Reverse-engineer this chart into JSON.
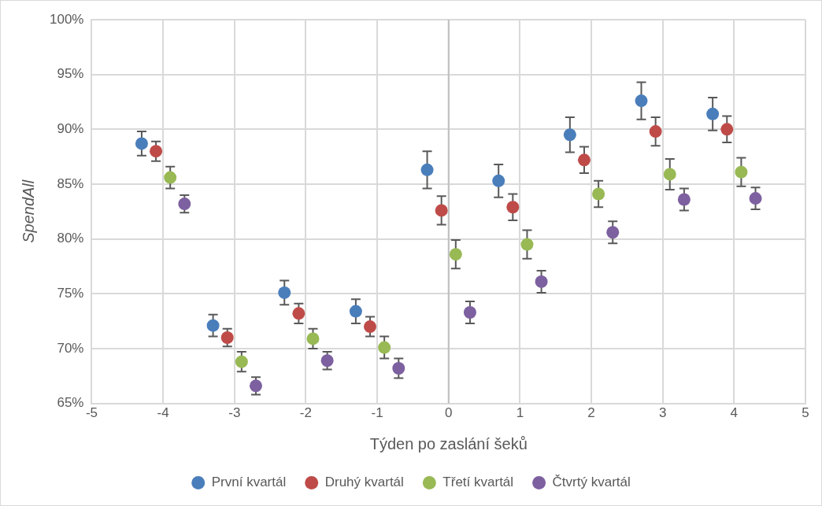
{
  "chart_data": {
    "type": "scatter",
    "xlabel": "Týden po zaslání šeků",
    "ylabel": "SpendAll",
    "xlim": [
      -5,
      5
    ],
    "xticks": [
      -5,
      -4,
      -3,
      -2,
      -1,
      0,
      1,
      2,
      3,
      4,
      5
    ],
    "ylim": [
      65,
      100
    ],
    "yticks": [
      {
        "value": 65,
        "label": "65%"
      },
      {
        "value": 70,
        "label": "70%"
      },
      {
        "value": 75,
        "label": "75%"
      },
      {
        "value": 80,
        "label": "80%"
      },
      {
        "value": 85,
        "label": "85%"
      },
      {
        "value": 90,
        "label": "90%"
      },
      {
        "value": 95,
        "label": "95%"
      },
      {
        "value": 100,
        "label": "100%"
      }
    ],
    "grid": true,
    "legend": "bottom",
    "marker": "circle",
    "ref_lines": [
      {
        "axis": "x",
        "value": 0,
        "color": "#bfbfbf"
      }
    ],
    "series": [
      {
        "name": "První kvartál",
        "color": "#4a7ebb",
        "x": [
          -4.3,
          -3.3,
          -2.3,
          -1.3,
          -0.3,
          0.7,
          1.7,
          2.7,
          3.7
        ],
        "values": [
          88.7,
          72.1,
          75.1,
          73.4,
          86.3,
          85.3,
          89.5,
          92.6,
          91.4
        ],
        "errors": [
          1.1,
          1.0,
          1.1,
          1.1,
          1.7,
          1.5,
          1.6,
          1.7,
          1.5
        ]
      },
      {
        "name": "Druhý kvartál",
        "color": "#be4b48",
        "x": [
          -4.1,
          -3.1,
          -2.1,
          -1.1,
          -0.1,
          0.9,
          1.9,
          2.9,
          3.9
        ],
        "values": [
          88.0,
          71.0,
          73.2,
          72.0,
          82.6,
          82.9,
          87.2,
          89.8,
          90.0
        ],
        "errors": [
          0.9,
          0.8,
          0.9,
          0.9,
          1.3,
          1.2,
          1.2,
          1.3,
          1.2
        ]
      },
      {
        "name": "Třetí kvartál",
        "color": "#98b954",
        "x": [
          -3.9,
          -2.9,
          -1.9,
          -0.9,
          0.1,
          1.1,
          2.1,
          3.1,
          4.1
        ],
        "values": [
          85.6,
          68.8,
          70.9,
          70.1,
          78.6,
          79.5,
          84.1,
          85.9,
          86.1
        ],
        "errors": [
          1.0,
          0.9,
          0.9,
          1.0,
          1.3,
          1.3,
          1.2,
          1.4,
          1.3
        ]
      },
      {
        "name": "Čtvrtý kvartál",
        "color": "#7d60a0",
        "x": [
          -3.7,
          -2.7,
          -1.7,
          -0.7,
          0.3,
          1.3,
          2.3,
          3.3,
          4.3
        ],
        "values": [
          83.2,
          66.6,
          68.9,
          68.2,
          73.3,
          76.1,
          80.6,
          83.6,
          83.7
        ],
        "errors": [
          0.8,
          0.8,
          0.8,
          0.9,
          1.0,
          1.0,
          1.0,
          1.0,
          1.0
        ]
      }
    ]
  }
}
